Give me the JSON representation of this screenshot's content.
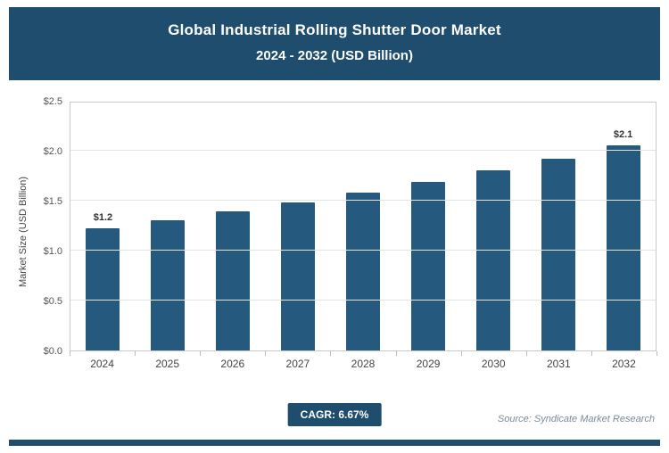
{
  "header": {
    "title_line1": "Global Industrial Rolling Shutter Door Market",
    "title_line2": "2024 - 2032 (USD Billion)"
  },
  "chart_data": {
    "type": "bar",
    "title": "Global Industrial Rolling Shutter Door Market 2024 - 2032 (USD Billion)",
    "categories": [
      "2024",
      "2025",
      "2026",
      "2027",
      "2028",
      "2029",
      "2030",
      "2031",
      "2032"
    ],
    "values": [
      1.22,
      1.3,
      1.39,
      1.48,
      1.58,
      1.69,
      1.8,
      1.92,
      2.05
    ],
    "point_labels": [
      "$1.2",
      null,
      null,
      null,
      null,
      null,
      null,
      null,
      "$2.1"
    ],
    "xlabel": "",
    "ylabel": "Market Size (USD Billion)",
    "ylim": [
      0,
      2.5
    ],
    "ytick_values": [
      0,
      0.5,
      1.0,
      1.5,
      2.0,
      2.5
    ],
    "ytick_labels": [
      "$0.0",
      "$0.5",
      "$1.0",
      "$1.5",
      "$2.0",
      "$2.5"
    ],
    "grid": true,
    "legend": "none",
    "bar_color": "#255a7e"
  },
  "footer": {
    "cagr_label": "CAGR: 6.67%",
    "source": "Source: Syndicate Market Research"
  },
  "colors": {
    "accent_navy": "#1e4d6e",
    "bar_navy": "#255a7e",
    "gridline": "#e3e3e3",
    "plot_border": "#c9c9c9"
  }
}
